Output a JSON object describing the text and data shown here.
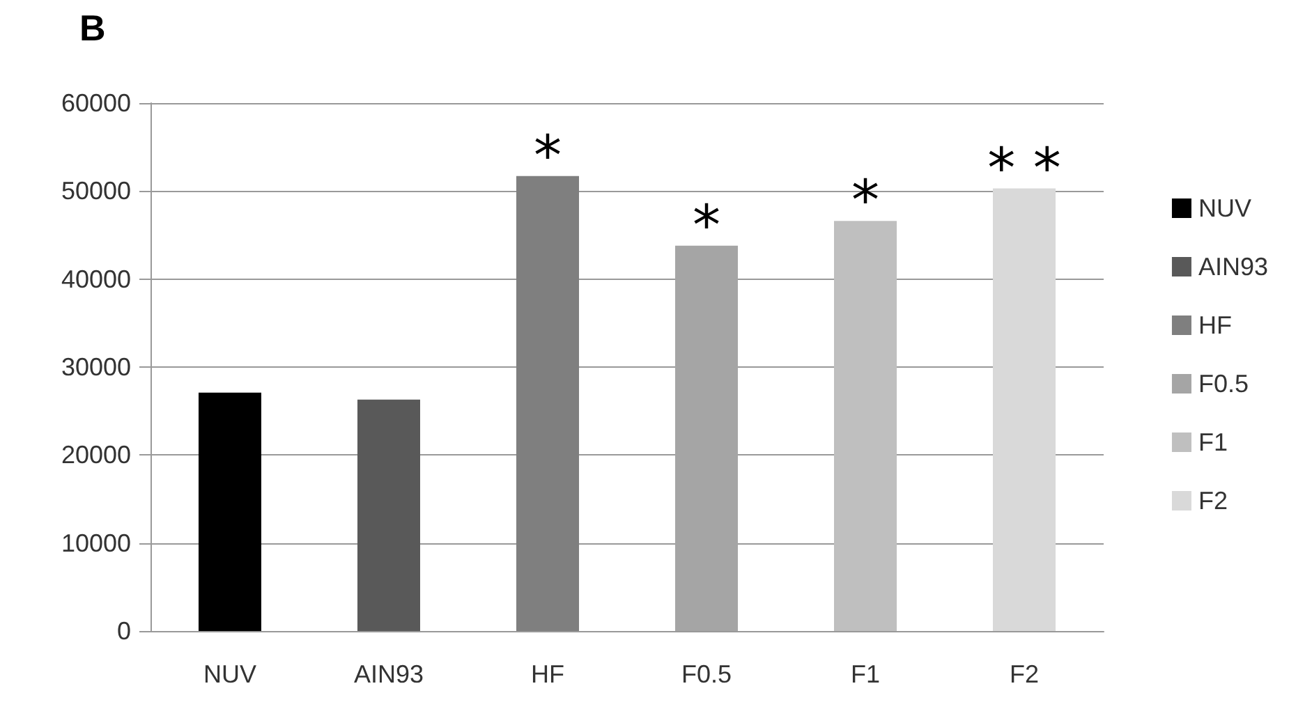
{
  "chart_data": {
    "type": "bar",
    "title": "B",
    "categories": [
      "NUV",
      "AIN93",
      "HF",
      "F0.5",
      "F1",
      "F2"
    ],
    "stacked": true,
    "series": [
      {
        "name": "NUV",
        "color": "#000000",
        "values": [
          27100,
          null,
          null,
          null,
          null,
          null
        ]
      },
      {
        "name": "AIN93",
        "color": "#595959",
        "values": [
          null,
          26300,
          null,
          null,
          null,
          null
        ]
      },
      {
        "name": "HF",
        "color": "#7f7f7f",
        "values": [
          null,
          null,
          51700,
          null,
          null,
          null
        ]
      },
      {
        "name": "F0.5",
        "color": "#a5a5a5",
        "values": [
          null,
          null,
          null,
          43800,
          null,
          null
        ]
      },
      {
        "name": "F1",
        "color": "#bfbfbf",
        "values": [
          null,
          null,
          null,
          null,
          46600,
          null
        ]
      },
      {
        "name": "F2",
        "color": "#d9d9d9",
        "values": [
          null,
          null,
          null,
          null,
          null,
          50300
        ]
      }
    ],
    "ylim": [
      0,
      60000
    ],
    "yticks": [
      0,
      10000,
      20000,
      30000,
      40000,
      50000,
      60000
    ],
    "grid": "y",
    "legend": "right",
    "annotations": [
      {
        "text": "*",
        "x": "HF",
        "y": 51700
      },
      {
        "text": "*",
        "x": "F0.5",
        "y": 43800
      },
      {
        "text": "*",
        "x": "F1",
        "y": 46600
      },
      {
        "text": "* *",
        "x": "F2",
        "y": 50300
      }
    ]
  }
}
